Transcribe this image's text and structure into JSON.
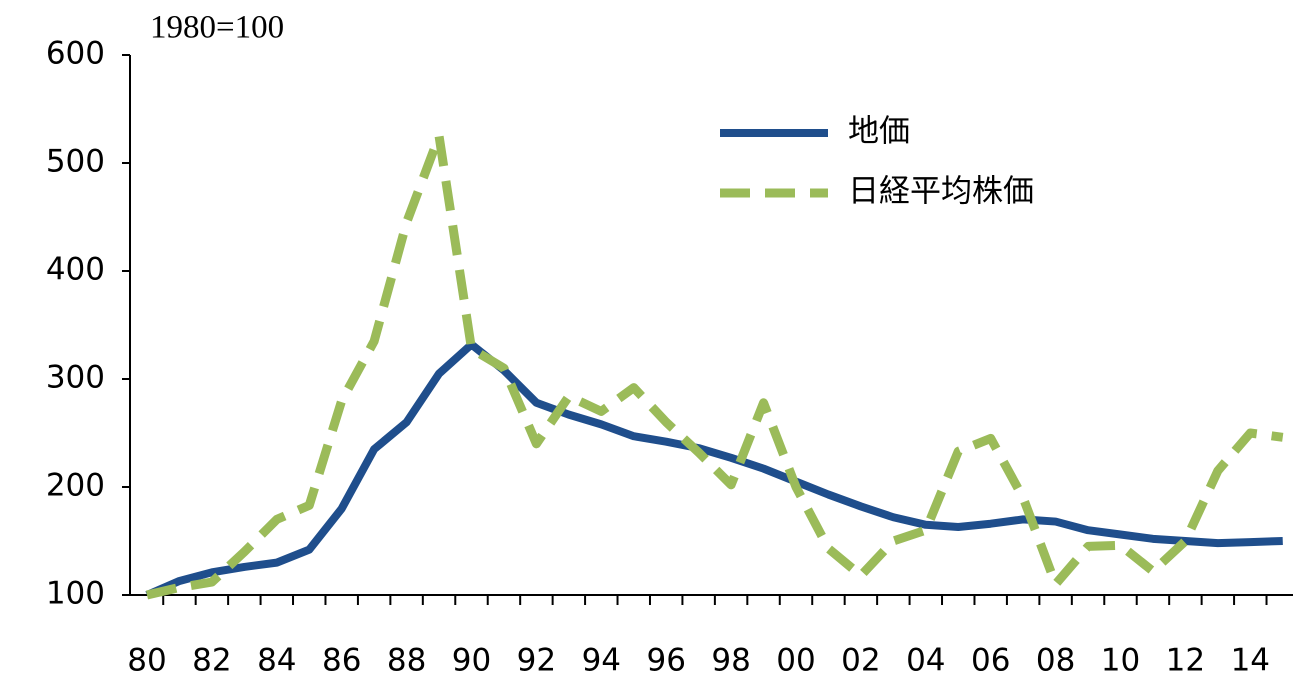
{
  "chart_data": {
    "type": "line",
    "annotation": "1980=100",
    "categories": [
      "80",
      null,
      "82",
      null,
      "84",
      null,
      "86",
      null,
      "88",
      null,
      "90",
      null,
      "92",
      null,
      "94",
      null,
      "96",
      null,
      "98",
      null,
      "00",
      null,
      "02",
      null,
      "04",
      null,
      "06",
      null,
      "08",
      null,
      "10",
      null,
      "12",
      null,
      "14",
      null
    ],
    "series": [
      {
        "name": "地価",
        "color": "#1f4e8c",
        "dashed": false,
        "values": [
          100,
          113,
          121,
          126,
          130,
          142,
          180,
          235,
          260,
          305,
          332,
          308,
          278,
          267,
          258,
          247,
          242,
          236,
          227,
          217,
          205,
          193,
          182,
          172,
          165,
          163,
          166,
          170,
          168,
          160,
          156,
          152,
          150,
          148,
          149,
          150
        ]
      },
      {
        "name": "日経平均株価",
        "color": "#9bbb59",
        "dashed": true,
        "values": [
          100,
          107,
          112,
          140,
          170,
          183,
          280,
          335,
          445,
          525,
          328,
          310,
          240,
          284,
          270,
          292,
          260,
          232,
          202,
          278,
          200,
          143,
          118,
          150,
          160,
          233,
          245,
          190,
          110,
          145,
          146,
          122,
          150,
          215,
          250,
          246
        ]
      }
    ],
    "ylim": [
      100,
      600
    ],
    "yticks": [
      100,
      200,
      300,
      400,
      500,
      600
    ],
    "grid": false,
    "legend": "top-right"
  }
}
